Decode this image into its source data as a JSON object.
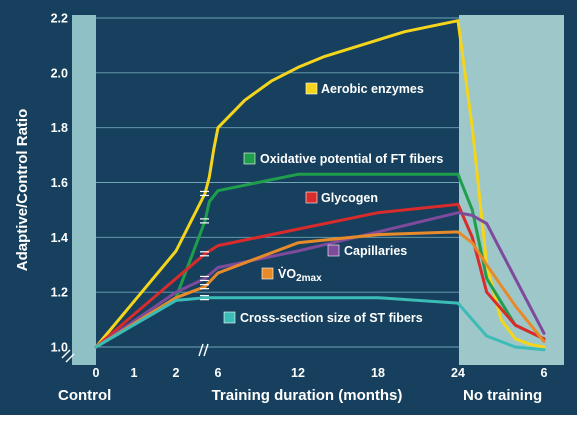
{
  "chart_data": {
    "type": "line",
    "title": "",
    "xlabel": "Training duration (months)",
    "ylabel": "Adaptive/Control Ratio",
    "section_labels": {
      "control": "Control",
      "detraining": "No training"
    },
    "ylim": [
      1.0,
      2.2
    ],
    "yticks": [
      "1.0",
      "1.2",
      "1.4",
      "1.6",
      "1.8",
      "2.0",
      "2.2"
    ],
    "xticks_control": [
      "0"
    ],
    "xticks_early": [
      "1",
      "2"
    ],
    "xticks_training": [
      "6",
      "12",
      "18",
      "24"
    ],
    "xticks_detraining": [
      "6"
    ],
    "grid": true,
    "legend_placement": "inline",
    "series": [
      {
        "name": "Aerobic enzymes",
        "color": "#f5d51c",
        "x": [
          0,
          2,
          3,
          4,
          5,
          6,
          8,
          10,
          12,
          14,
          16,
          18,
          20,
          22,
          24,
          25,
          26,
          27,
          28,
          29,
          30
        ],
        "values": [
          1.0,
          1.35,
          1.56,
          1.62,
          1.72,
          1.8,
          1.9,
          1.97,
          2.02,
          2.06,
          2.09,
          2.12,
          2.15,
          2.17,
          2.19,
          1.8,
          1.3,
          1.1,
          1.03,
          1.01,
          1.0
        ]
      },
      {
        "name": "Oxidative potential of FT fibers",
        "color": "#1f9e4b",
        "x": [
          0,
          2,
          3,
          4,
          6,
          12,
          18,
          24,
          25,
          26,
          28,
          30
        ],
        "values": [
          1.0,
          1.18,
          1.46,
          1.53,
          1.57,
          1.63,
          1.63,
          1.63,
          1.5,
          1.25,
          1.08,
          1.03
        ]
      },
      {
        "name": "Glycogen",
        "color": "#d92b2b",
        "x": [
          0,
          2,
          3,
          6,
          12,
          18,
          24,
          25,
          26,
          28,
          30
        ],
        "values": [
          1.0,
          1.25,
          1.34,
          1.37,
          1.43,
          1.49,
          1.52,
          1.4,
          1.2,
          1.08,
          1.03
        ]
      },
      {
        "name": "Capillaries",
        "color": "#7e4a9b",
        "x": [
          0,
          2,
          3,
          6,
          12,
          18,
          24,
          25,
          26,
          28,
          30
        ],
        "values": [
          1.0,
          1.2,
          1.25,
          1.29,
          1.35,
          1.42,
          1.49,
          1.48,
          1.45,
          1.25,
          1.05
        ]
      },
      {
        "name": "V̇O2max",
        "color": "#e78a2a",
        "x": [
          0,
          2,
          3,
          6,
          12,
          18,
          24,
          25,
          26,
          28,
          30
        ],
        "values": [
          1.0,
          1.18,
          1.22,
          1.27,
          1.38,
          1.41,
          1.42,
          1.38,
          1.3,
          1.15,
          1.02
        ]
      },
      {
        "name": "Cross-section size of ST fibers",
        "color": "#3bbcb6",
        "x": [
          0,
          2,
          3,
          6,
          12,
          18,
          24,
          25,
          26,
          28,
          30
        ],
        "values": [
          1.0,
          1.17,
          1.18,
          1.18,
          1.18,
          1.18,
          1.16,
          1.1,
          1.04,
          1.0,
          0.99
        ]
      }
    ]
  }
}
